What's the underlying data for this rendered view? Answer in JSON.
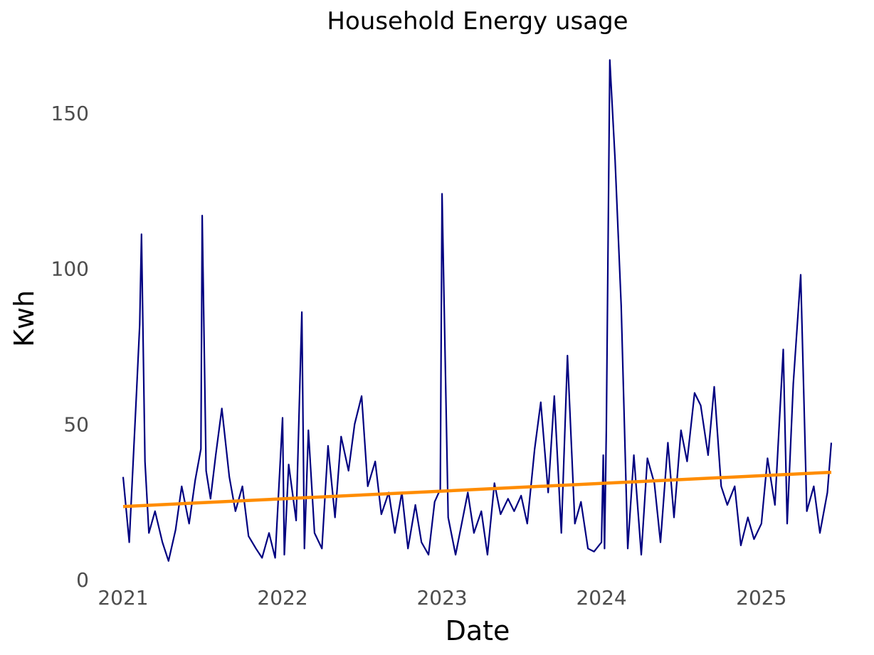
{
  "chart_data": {
    "type": "line",
    "title": "Household Energy usage",
    "xlabel": "Date",
    "ylabel": "Kwh",
    "ylim": [
      0,
      168
    ],
    "xlim": [
      "2021-01-01",
      "2025-06-10"
    ],
    "grid": false,
    "legend": "none",
    "x_ticks": [
      "2021",
      "2022",
      "2023",
      "2024",
      "2025"
    ],
    "y_ticks": [
      "0",
      "50",
      "100",
      "150"
    ],
    "series": [
      {
        "color": "#000080",
        "x": [
          "2021-01-01",
          "2021-01-15",
          "2021-02-01",
          "2021-02-08",
          "2021-02-12",
          "2021-02-20",
          "2021-03-01",
          "2021-03-15",
          "2021-04-01",
          "2021-04-15",
          "2021-05-01",
          "2021-05-15",
          "2021-06-01",
          "2021-06-15",
          "2021-06-28",
          "2021-07-01",
          "2021-07-10",
          "2021-07-20",
          "2021-08-01",
          "2021-08-15",
          "2021-09-01",
          "2021-09-15",
          "2021-10-01",
          "2021-10-15",
          "2021-11-01",
          "2021-11-15",
          "2021-12-01",
          "2021-12-15",
          "2022-01-01",
          "2022-01-05",
          "2022-01-15",
          "2022-02-01",
          "2022-02-14",
          "2022-02-20",
          "2022-03-01",
          "2022-03-15",
          "2022-04-01",
          "2022-04-15",
          "2022-05-01",
          "2022-05-15",
          "2022-06-01",
          "2022-06-15",
          "2022-07-01",
          "2022-07-15",
          "2022-08-01",
          "2022-08-15",
          "2022-09-01",
          "2022-09-15",
          "2022-10-01",
          "2022-10-15",
          "2022-11-01",
          "2022-11-15",
          "2022-12-01",
          "2022-12-15",
          "2022-12-28",
          "2023-01-01",
          "2023-01-15",
          "2023-02-01",
          "2023-02-15",
          "2023-03-01",
          "2023-03-15",
          "2023-04-01",
          "2023-04-15",
          "2023-05-01",
          "2023-05-15",
          "2023-06-01",
          "2023-06-15",
          "2023-07-01",
          "2023-07-15",
          "2023-08-01",
          "2023-08-15",
          "2023-09-01",
          "2023-09-15",
          "2023-10-01",
          "2023-10-15",
          "2023-11-01",
          "2023-11-15",
          "2023-12-01",
          "2023-12-15",
          "2024-01-01",
          "2024-01-05",
          "2024-01-08",
          "2024-01-12",
          "2024-01-20",
          "2024-02-01",
          "2024-02-15",
          "2024-03-01",
          "2024-03-15",
          "2024-04-01",
          "2024-04-15",
          "2024-05-01",
          "2024-05-15",
          "2024-06-01",
          "2024-06-15",
          "2024-07-01",
          "2024-07-15",
          "2024-08-01",
          "2024-08-15",
          "2024-09-01",
          "2024-09-15",
          "2024-10-01",
          "2024-10-15",
          "2024-11-01",
          "2024-11-15",
          "2024-12-01",
          "2024-12-15",
          "2025-01-01",
          "2025-01-15",
          "2025-02-01",
          "2025-02-20",
          "2025-03-01",
          "2025-03-15",
          "2025-04-01",
          "2025-04-15",
          "2025-05-01",
          "2025-05-15",
          "2025-06-01",
          "2025-06-10"
        ],
        "values": [
          33,
          12,
          61,
          82,
          111,
          38,
          15,
          22,
          12,
          6,
          16,
          30,
          18,
          32,
          42,
          117,
          35,
          26,
          40,
          55,
          33,
          22,
          30,
          14,
          10,
          7,
          15,
          7,
          52,
          8,
          37,
          19,
          86,
          10,
          48,
          15,
          10,
          43,
          20,
          46,
          35,
          50,
          59,
          30,
          38,
          21,
          28,
          15,
          28,
          10,
          24,
          12,
          8,
          25,
          29,
          124,
          20,
          8,
          18,
          28,
          15,
          22,
          8,
          31,
          21,
          26,
          22,
          27,
          18,
          42,
          57,
          28,
          59,
          15,
          72,
          18,
          25,
          10,
          9,
          12,
          40,
          10,
          48,
          167,
          135,
          88,
          10,
          40,
          8,
          39,
          31,
          12,
          44,
          20,
          48,
          38,
          60,
          56,
          40,
          62,
          30,
          24,
          30,
          11,
          20,
          13,
          18,
          39,
          24,
          74,
          18,
          63,
          98,
          22,
          30,
          15,
          28,
          44
        ]
      },
      {
        "color": "#ff8c00",
        "x": [
          "2021-01-01",
          "2025-06-10"
        ],
        "values": [
          23.5,
          34.5
        ]
      }
    ]
  }
}
